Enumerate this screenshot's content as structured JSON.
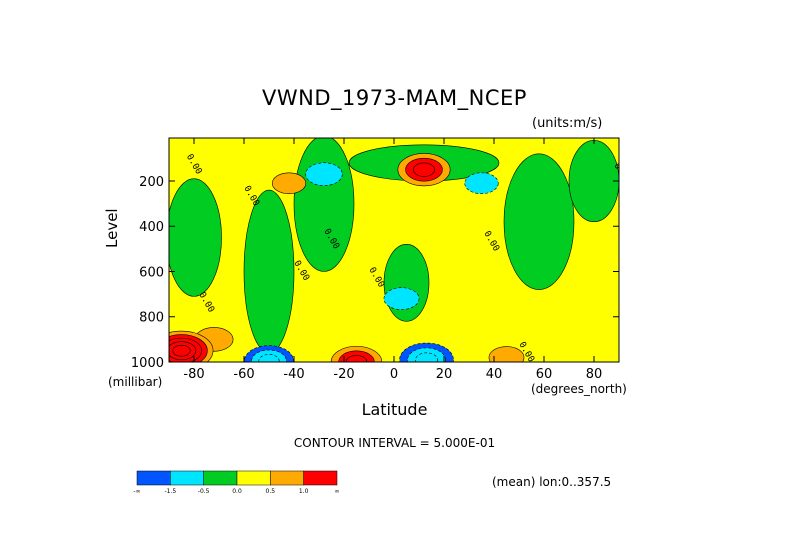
{
  "chart_data": {
    "type": "heatmap",
    "title": "VWND_1973-MAM_NCEP",
    "units_label": "(units:m/s)",
    "xlabel": "Latitude",
    "x_unit_label": "(degrees_north)",
    "ylabel": "Level",
    "y_unit_label": "(millibar)",
    "xlim": [
      -90,
      90
    ],
    "ylim": [
      1000,
      10
    ],
    "x_ticks": [
      "-80",
      "-60",
      "-40",
      "-20",
      "0",
      "20",
      "40",
      "60",
      "80"
    ],
    "x_tick_values": [
      -80,
      -60,
      -40,
      -20,
      0,
      20,
      40,
      60,
      80
    ],
    "y_ticks": [
      "200",
      "400",
      "600",
      "800",
      "1000"
    ],
    "y_tick_values": [
      200,
      400,
      600,
      800,
      1000
    ],
    "contour_interval_label": "CONTOUR INTERVAL = 5.000E-01",
    "contour_zero_label": "0.00",
    "mean_label": "(mean) lon:0..357.5",
    "colorbar": {
      "labels": [
        "-∞",
        "-1.5",
        "-0.5",
        "0.0",
        "0.5",
        "1.0",
        "∞"
      ],
      "colors": [
        "#0055ff",
        "#00e5ff",
        "#00cc22",
        "#ffff00",
        "#ffaa00",
        "#ff0000"
      ]
    },
    "features": [
      {
        "lat": 12,
        "level": 150,
        "value": 1.8,
        "sign": "max"
      },
      {
        "lat": -28,
        "level": 170,
        "value": -0.8,
        "sign": "min"
      },
      {
        "lat": -42,
        "level": 210,
        "value": 0.6,
        "sign": "max"
      },
      {
        "lat": 35,
        "level": 210,
        "value": -0.6,
        "sign": "min"
      },
      {
        "lat": 3,
        "level": 720,
        "value": -0.7,
        "sign": "min"
      },
      {
        "lat": -15,
        "level": 1000,
        "value": 1.7,
        "sign": "max"
      },
      {
        "lat": 13,
        "level": 990,
        "value": -1.9,
        "sign": "min"
      },
      {
        "lat": -50,
        "level": 995,
        "value": -1.6,
        "sign": "min"
      },
      {
        "lat": -72,
        "level": 900,
        "value": 0.9,
        "sign": "max"
      },
      {
        "lat": 45,
        "level": 980,
        "value": 0.7,
        "sign": "max"
      },
      {
        "lat": -85,
        "level": 950,
        "value": 2.5,
        "sign": "max"
      }
    ]
  }
}
